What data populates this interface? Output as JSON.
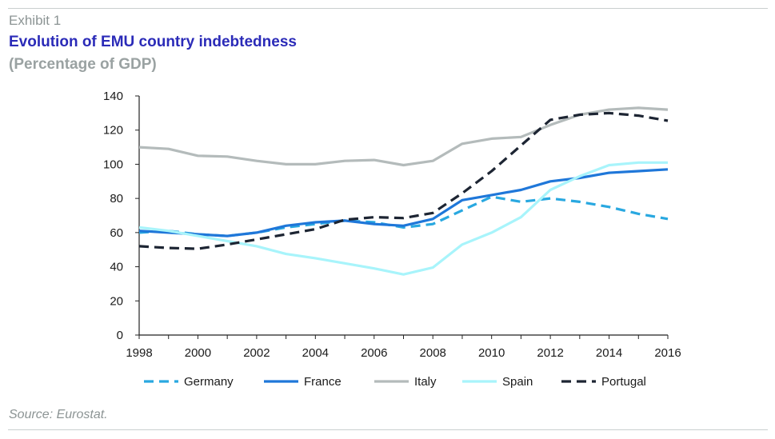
{
  "header": {
    "exhibit": "Exhibit 1",
    "title": "Evolution of EMU country indebtedness",
    "subtitle": "(Percentage of GDP)"
  },
  "footer": {
    "source": "Source: Eurostat."
  },
  "chart_data": {
    "type": "line",
    "title": "Evolution of EMU country indebtedness",
    "subtitle": "(Percentage of GDP)",
    "xlabel": "",
    "ylabel": "",
    "xlim": [
      1998,
      2016
    ],
    "ylim": [
      0,
      140
    ],
    "x_ticks": [
      "1998",
      "2000",
      "2002",
      "2004",
      "2006",
      "2008",
      "2010",
      "2012",
      "2014",
      "2016"
    ],
    "y_ticks": [
      "0",
      "20",
      "40",
      "60",
      "80",
      "100",
      "120",
      "140"
    ],
    "grid": false,
    "legend": "bottom",
    "x": [
      1998,
      1999,
      2000,
      2001,
      2002,
      2003,
      2004,
      2005,
      2006,
      2007,
      2008,
      2009,
      2010,
      2011,
      2012,
      2013,
      2014,
      2015,
      2016
    ],
    "series": [
      {
        "name": "Germany",
        "color": "#29a8e0",
        "dash": "dashed",
        "values": [
          60,
          61,
          59,
          58,
          60,
          63,
          65,
          67,
          66,
          63,
          65,
          73,
          81,
          78,
          80,
          78,
          75,
          71,
          68
        ]
      },
      {
        "name": "France",
        "color": "#1f77d9",
        "dash": "solid",
        "values": [
          61,
          60,
          59,
          58,
          60,
          64,
          66,
          67,
          65,
          64,
          68,
          79,
          82,
          85,
          90,
          92,
          95,
          96,
          97
        ]
      },
      {
        "name": "Italy",
        "color": "#b4bbbb",
        "dash": "solid",
        "values": [
          110,
          109,
          105,
          104.5,
          102,
          100,
          100,
          102,
          102.5,
          99.5,
          102,
          112,
          115,
          116,
          123,
          129,
          132,
          133,
          132
        ]
      },
      {
        "name": "Spain",
        "color": "#a8f4fb",
        "dash": "solid",
        "values": [
          63,
          61,
          58,
          55,
          52,
          47.5,
          45,
          42,
          39,
          35.5,
          39.5,
          53,
          60,
          69,
          85,
          93,
          99.5,
          101,
          101
        ]
      },
      {
        "name": "Portugal",
        "color": "#1d2533",
        "dash": "dashed",
        "values": [
          52,
          51,
          50.5,
          53,
          56,
          59,
          62,
          67.5,
          69,
          68.5,
          71.5,
          83,
          96,
          111,
          126,
          129,
          130,
          128.5,
          125.5
        ]
      }
    ]
  }
}
